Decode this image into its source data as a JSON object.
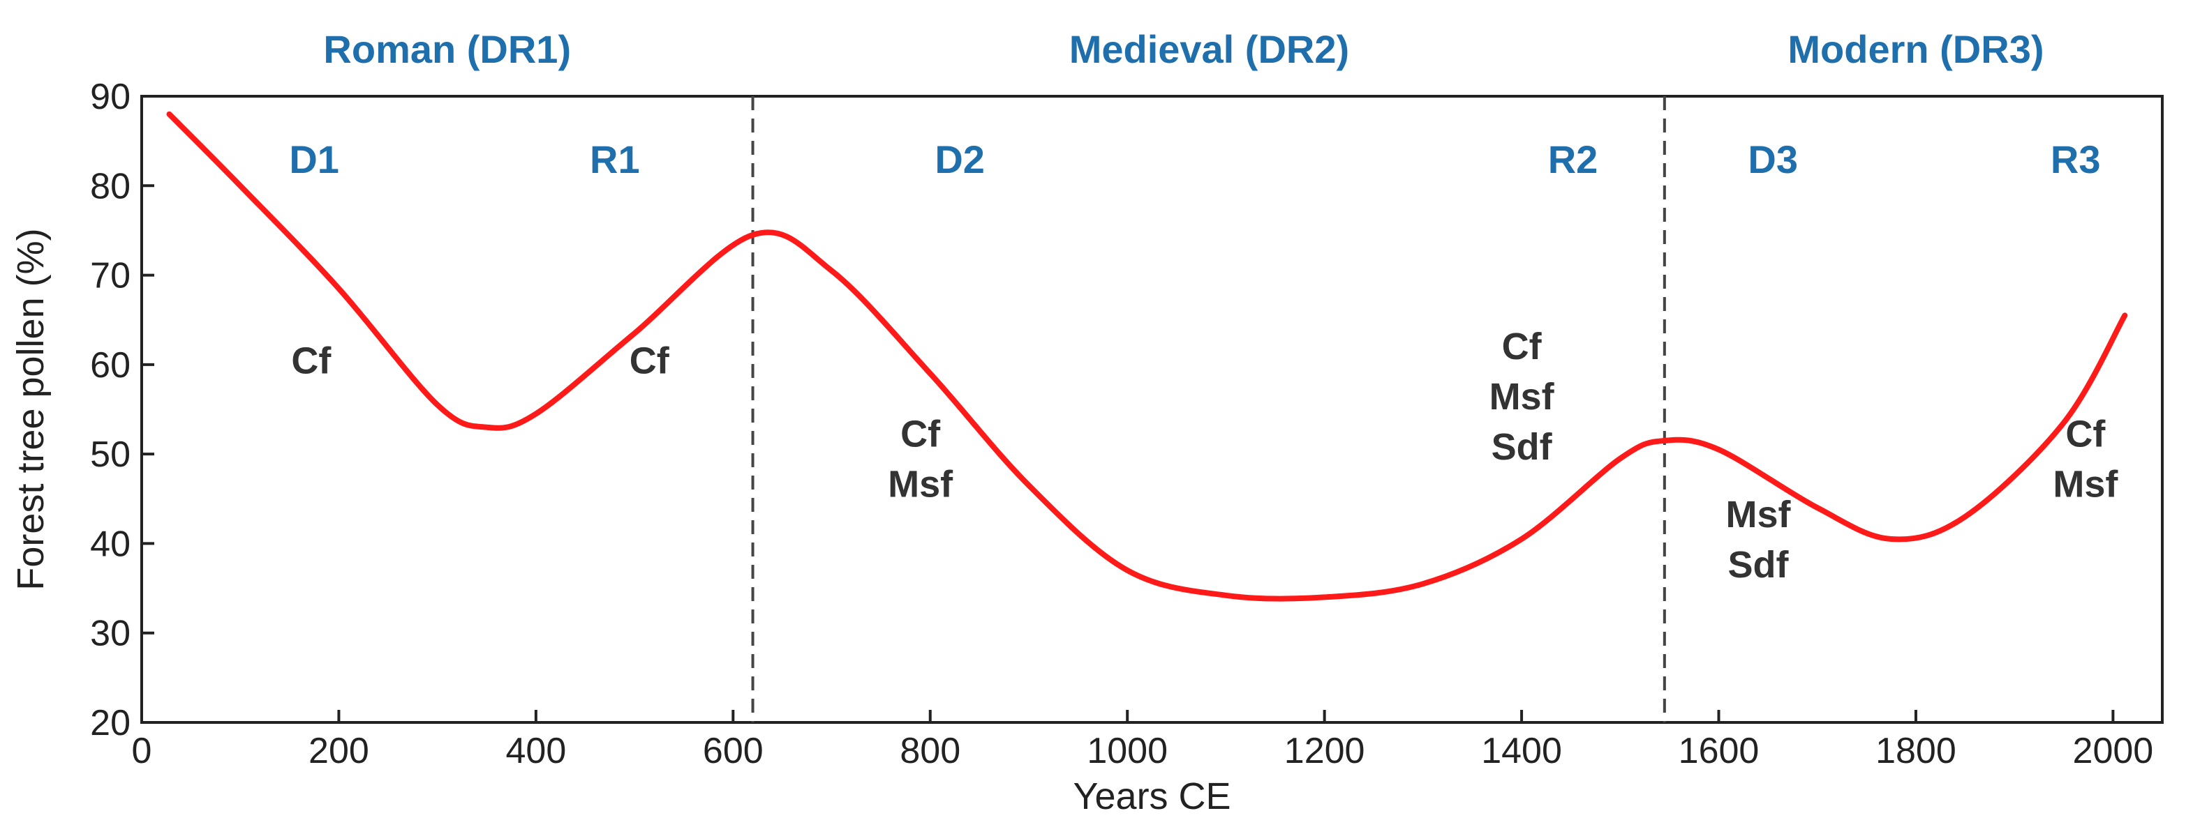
{
  "chart_data": {
    "type": "line",
    "title": "",
    "xlabel": "Years CE",
    "ylabel": "Forest tree pollen (%)",
    "xlim": [
      0,
      2050
    ],
    "ylim": [
      20,
      90
    ],
    "xticks": [
      "0",
      "200",
      "400",
      "600",
      "800",
      "1000",
      "1200",
      "1400",
      "1600",
      "1800",
      "2000"
    ],
    "yticks": [
      "20",
      "30",
      "40",
      "50",
      "60",
      "70",
      "80",
      "90"
    ],
    "series": [
      {
        "name": "Forest tree pollen",
        "color": "#ff1a1a",
        "x": [
          28,
          100,
          200,
          300,
          350,
          400,
          500,
          620,
          700,
          800,
          900,
          1000,
          1100,
          1200,
          1300,
          1400,
          1500,
          1545,
          1600,
          1700,
          1775,
          1850,
          1950,
          2012
        ],
        "y": [
          88,
          80,
          68.5,
          55.5,
          53,
          54.5,
          63.5,
          74.5,
          70.5,
          59,
          46.5,
          37,
          34.2,
          34,
          35.5,
          40.5,
          49.5,
          51.5,
          50.5,
          44,
          40.5,
          43,
          53.5,
          65.5
        ]
      }
    ],
    "dividers": [
      620,
      1545
    ],
    "periods": [
      {
        "label": "Roman (DR1)",
        "x": 310
      },
      {
        "label": "Medieval (DR2)",
        "x": 1083
      },
      {
        "label": "Modern (DR3)",
        "x": 1800
      }
    ],
    "phases": [
      {
        "label": "D1",
        "x": 175,
        "y": 83
      },
      {
        "label": "R1",
        "x": 480,
        "y": 83
      },
      {
        "label": "D2",
        "x": 830,
        "y": 83
      },
      {
        "label": "R2",
        "x": 1452,
        "y": 83
      },
      {
        "label": "D3",
        "x": 1655,
        "y": 83
      },
      {
        "label": "R3",
        "x": 1962,
        "y": 83
      }
    ],
    "annotations": [
      {
        "lines": [
          "Cf"
        ],
        "x": 172,
        "y": 60.5
      },
      {
        "lines": [
          "Cf"
        ],
        "x": 515,
        "y": 60.5
      },
      {
        "lines": [
          "Cf",
          "Msf"
        ],
        "x": 790,
        "y": 49.5
      },
      {
        "lines": [
          "Cf",
          "Msf",
          "Sdf"
        ],
        "x": 1400,
        "y": 56.5
      },
      {
        "lines": [
          "Msf",
          "Sdf"
        ],
        "x": 1640,
        "y": 40.5
      },
      {
        "lines": [
          "Cf",
          "Msf"
        ],
        "x": 1972,
        "y": 49.5
      }
    ]
  }
}
